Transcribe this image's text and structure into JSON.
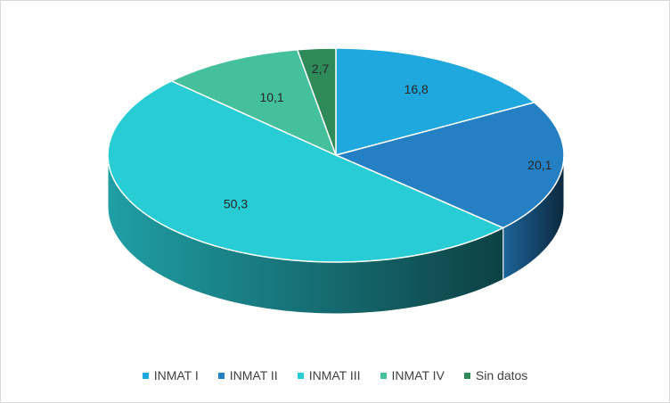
{
  "chart_data": {
    "type": "pie",
    "style": "3d",
    "title": "",
    "categories": [
      "INMAT I",
      "INMAT II",
      "INMAT III",
      "INMAT IV",
      "Sin datos"
    ],
    "values": [
      16.8,
      20.1,
      50.3,
      10.1,
      2.7
    ],
    "data_labels": [
      "16,8",
      "20,1",
      "50,3",
      "10,1",
      "2,7"
    ],
    "colors": [
      "#1fa8dd",
      "#2580c3",
      "#28ccd4",
      "#45c09c",
      "#2f8a5a"
    ],
    "legend_position": "bottom"
  },
  "legend": {
    "items": [
      {
        "label": "INMAT I",
        "color": "#1fa8dd"
      },
      {
        "label": "INMAT II",
        "color": "#2580c3"
      },
      {
        "label": "INMAT III",
        "color": "#28ccd4"
      },
      {
        "label": "INMAT IV",
        "color": "#45c09c"
      },
      {
        "label": "Sin datos",
        "color": "#2f8a5a"
      }
    ]
  }
}
